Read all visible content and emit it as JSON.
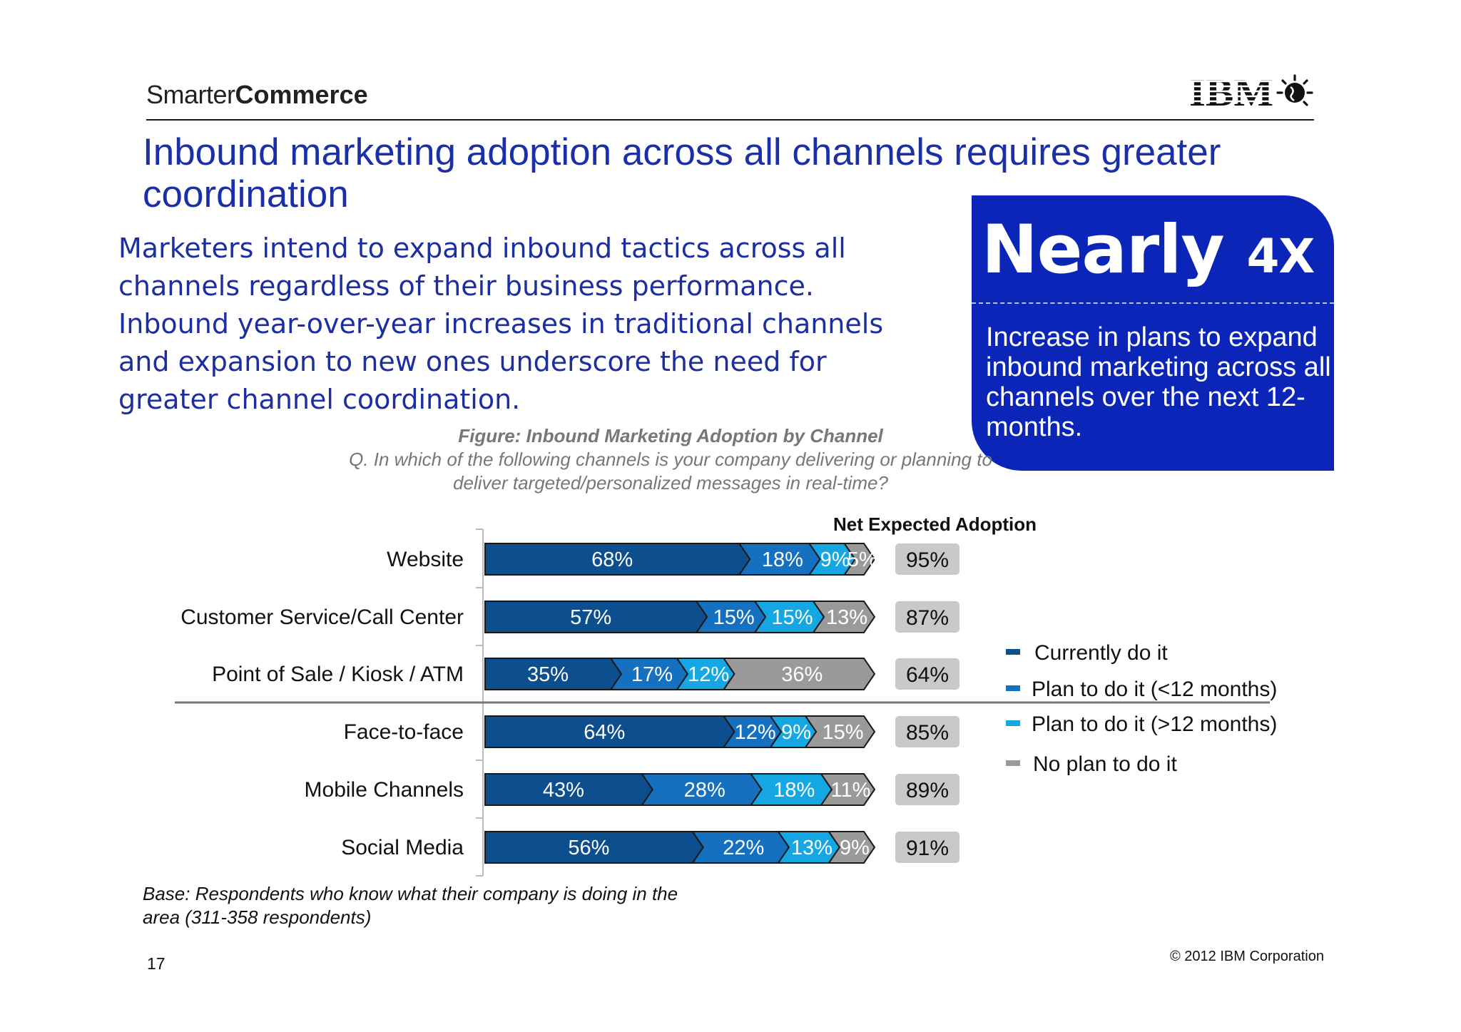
{
  "header": {
    "brand_light": "Smarter",
    "brand_bold": "Commerce",
    "logo_text": "IBM"
  },
  "title": "Inbound marketing adoption across all channels requires greater coordination",
  "intro": "Marketers intend to expand inbound tactics across all channels regardless of their business performance.  Inbound year-over-year increases in traditional channels and expansion to new ones underscore the need for greater channel coordination.",
  "callout": {
    "big": "Nearly",
    "big_small": "4X",
    "text": "Increase in plans to expand inbound marketing across all channels over the next 12-months."
  },
  "figure": {
    "title": "Figure: Inbound Marketing Adoption by Channel",
    "question": "Q. In which of the following channels is your company delivering or planning to deliver targeted/personalized messages in real-time?"
  },
  "net_title": "Net Expected Adoption",
  "colors": {
    "currently": "#0d4f8e",
    "plan_lt12": "#1670c0",
    "plan_gt12": "#15a7e3",
    "no_plan": "#9a9a9a",
    "net_box": "#c9c9c9",
    "title_blue": "#1b2fa8"
  },
  "chart_data": {
    "type": "bar",
    "stacked": true,
    "orientation": "horizontal",
    "categories": [
      "Website",
      "Customer Service/Call Center",
      "Point of Sale / Kiosk / ATM",
      "Face-to-face",
      "Mobile Channels",
      "Social Media"
    ],
    "series": [
      {
        "name": "Currently do it",
        "values": [
          68,
          57,
          35,
          64,
          43,
          56
        ]
      },
      {
        "name": "Plan to do it (<12 months)",
        "values": [
          18,
          15,
          17,
          12,
          28,
          22
        ]
      },
      {
        "name": "Plan to do it (>12 months)",
        "values": [
          9,
          15,
          12,
          9,
          18,
          13
        ]
      },
      {
        "name": "No plan to do it",
        "values": [
          5,
          13,
          36,
          15,
          11,
          9
        ]
      }
    ],
    "net_expected_adoption": [
      95,
      87,
      64,
      85,
      89,
      91
    ],
    "value_suffix": "%",
    "legend_position": "right",
    "separator_after_category": "Point of Sale / Kiosk / ATM"
  },
  "base_note": "Base: Respondents who know what their company is doing in the area (311-358 respondents)",
  "page_number": "17",
  "copyright": "© 2012 IBM Corporation"
}
